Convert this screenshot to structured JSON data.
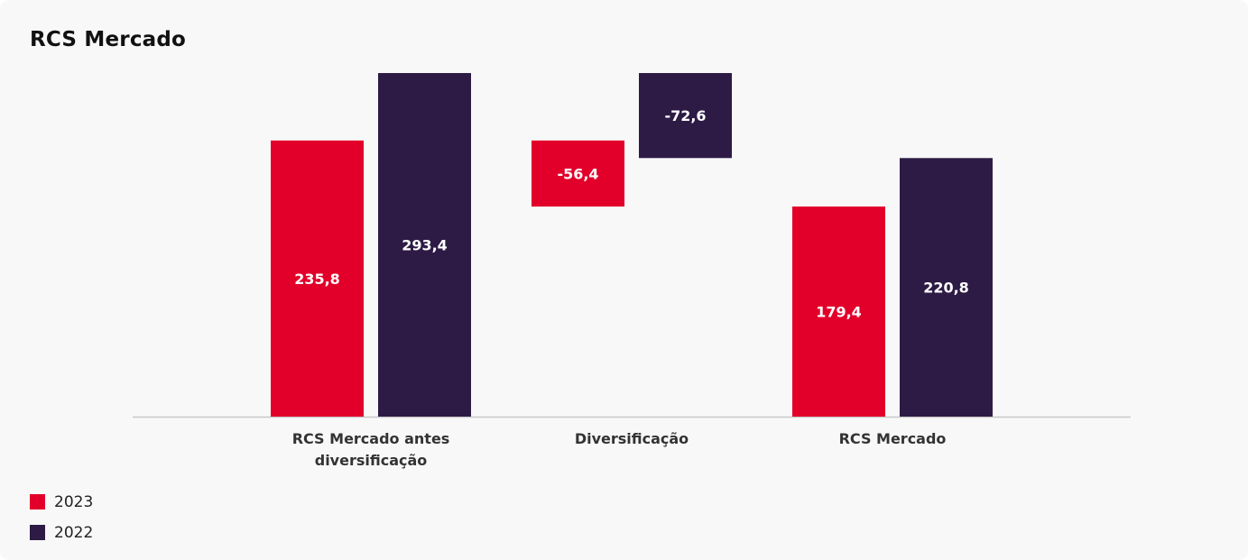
{
  "chart_data": {
    "type": "bar",
    "title": "RCS Mercado",
    "categories": [
      "RCS Mercado antes diversificação",
      "Diversificação",
      "RCS Mercado"
    ],
    "category_label_lines": [
      [
        "RCS Mercado antes",
        "diversificação"
      ],
      [
        "Diversificação"
      ],
      [
        "RCS Mercado"
      ]
    ],
    "series": [
      {
        "name": "2023",
        "color": "#e2002a",
        "values": [
          235.8,
          -56.4,
          179.4
        ],
        "labels": [
          "235,8",
          "-56,4",
          "179,4"
        ]
      },
      {
        "name": "2022",
        "color": "#2d1b45",
        "values": [
          293.4,
          -72.6,
          220.8
        ],
        "labels": [
          "293,4",
          "-72,6",
          "220,8"
        ]
      }
    ],
    "waterfall": true,
    "ylim": [
      0,
      293.4
    ],
    "grid": false,
    "legend_position": "bottom-left"
  }
}
